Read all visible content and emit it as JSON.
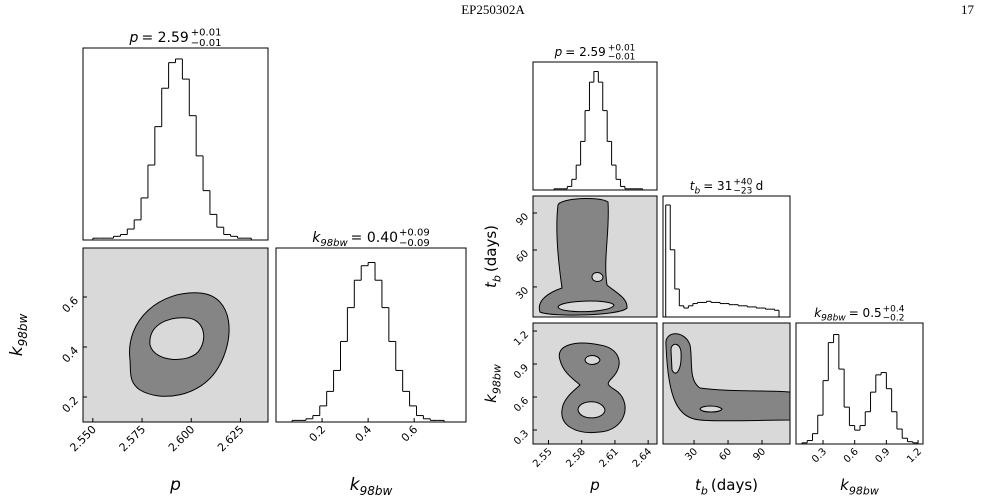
{
  "header": {
    "running_title": "EP250302A",
    "page_number": "17"
  },
  "figures": [
    {
      "columns": [
        {
          "title": {
            "symbol": "p",
            "value": "= 2.59",
            "upper": "+0.01",
            "lower": "−0.01"
          },
          "xlabel": {
            "symbol": "p"
          },
          "xlim": [
            2.545,
            2.639
          ],
          "xticks": [
            {
              "value": 2.55,
              "label": "2.550"
            },
            2.575,
            {
              "value": 2.6,
              "label": "2.600"
            },
            2.625
          ],
          "hist": {
            "bins": [
              2.55,
              2.5535,
              2.557,
              2.5605,
              2.564,
              2.5675,
              2.571,
              2.5745,
              2.578,
              2.5815,
              2.585,
              2.5885,
              2.592,
              2.5955,
              2.599,
              2.6025,
              2.606,
              2.6095,
              2.613,
              2.6165,
              2.62,
              2.6235,
              2.627,
              2.6305,
              2.634
            ],
            "counts": [
              1,
              1,
              1,
              2,
              3,
              6,
              11,
              23,
              41,
              62,
              83,
              97,
              99,
              88,
              68,
              46,
              27,
              14,
              7,
              3,
              2,
              1,
              1,
              0
            ],
            "ylim": [
              0,
              105
            ]
          }
        },
        {
          "title": {
            "symbol": "k",
            "sub": "98bw",
            "value": "= 0.40",
            "upper": "+0.09",
            "lower": "−0.09"
          },
          "xlabel": {
            "symbol": "k",
            "sub": "98bw"
          },
          "xlim": [
            0,
            0.825
          ],
          "xticks": [
            0.2,
            0.4,
            0.6
          ],
          "hist": {
            "bins": [
              0.04,
              0.07,
              0.1,
              0.13,
              0.16,
              0.19,
              0.22,
              0.25,
              0.28,
              0.31,
              0.34,
              0.37,
              0.4,
              0.43,
              0.46,
              0.49,
              0.52,
              0.55,
              0.58,
              0.61,
              0.64,
              0.67,
              0.7,
              0.73,
              0.76
            ],
            "counts": [
              0,
              1,
              1,
              2,
              4,
              10,
              19,
              32,
              50,
              71,
              88,
              97,
              99,
              88,
              71,
              50,
              32,
              19,
              10,
              4,
              2,
              1,
              1,
              0
            ],
            "ylim": [
              0,
              108
            ]
          }
        }
      ],
      "rows": [
        {
          "ylabel": {
            "symbol": "k",
            "sub": "98bw"
          },
          "ylim": [
            0.1,
            0.796
          ],
          "yticks": [
            0.2,
            0.4,
            0.6
          ]
        }
      ]
    },
    {
      "columns": [
        {
          "title": {
            "symbol": "p",
            "value": "= 2.59",
            "upper": "+0.01",
            "lower": "−0.01"
          },
          "xlabel": {
            "symbol": "p"
          },
          "xlim": [
            2.536,
            2.648
          ],
          "xticks": [
            2.55,
            2.58,
            2.61,
            2.64
          ],
          "hist": {
            "bins": [
              2.555,
              2.559,
              2.563,
              2.567,
              2.571,
              2.575,
              2.579,
              2.583,
              2.587,
              2.591,
              2.595,
              2.599,
              2.603,
              2.607,
              2.611,
              2.615,
              2.619,
              2.623,
              2.627,
              2.631,
              2.635,
              2.639,
              2.643
            ],
            "counts": [
              1,
              1,
              1,
              3,
              9,
              21,
              41,
              67,
              91,
              100,
              91,
              67,
              41,
              21,
              9,
              3,
              1,
              1,
              1,
              1,
              0,
              0
            ],
            "ylim": [
              0,
              108
            ]
          }
        },
        {
          "title": {
            "symbol": "t",
            "sub": "b",
            "value": "= 31",
            "upper": "+40",
            "lower": "−23",
            "unit": "d"
          },
          "xlabel": {
            "symbol": "t",
            "sub": "b",
            "unit": "(days)"
          },
          "xlim": [
            2.6,
            114.7
          ],
          "xticks": [
            30,
            60,
            90
          ],
          "hist": {
            "bins": [
              5,
              9,
              13,
              17,
              21,
              25,
              29,
              33,
              37,
              41,
              45,
              49,
              53,
              57,
              61,
              65,
              69,
              73,
              77,
              81,
              85,
              89,
              93,
              97,
              101,
              105
            ],
            "counts": [
              100,
              60,
              25,
              10,
              8,
              10,
              12,
              13,
              13,
              14,
              13,
              13,
              12,
              12,
              11,
              11,
              10,
              10,
              9,
              9,
              8,
              8,
              7,
              7,
              6
            ],
            "ylim": [
              0,
              108
            ]
          }
        },
        {
          "title": {
            "symbol": "k",
            "sub": "98bw",
            "value": "= 0.5",
            "upper": "+0.4",
            "lower": "−0.2"
          },
          "xlabel": {
            "symbol": "k",
            "sub": "98bw"
          },
          "xlim": [
            0.044,
            1.247
          ],
          "xticks": [
            0.3,
            0.6,
            0.9,
            1.2
          ],
          "hist": {
            "bins": [
              0.1,
              0.15,
              0.2,
              0.25,
              0.3,
              0.35,
              0.4,
              0.45,
              0.5,
              0.55,
              0.6,
              0.65,
              0.7,
              0.75,
              0.8,
              0.85,
              0.9,
              0.95,
              1.0,
              1.05,
              1.1,
              1.15,
              1.2
            ],
            "counts": [
              1,
              3,
              9,
              25,
              55,
              88,
              95,
              65,
              32,
              16,
              12,
              16,
              28,
              45,
              60,
              62,
              48,
              28,
              13,
              5,
              2,
              1
            ],
            "ylim": [
              0,
              105
            ]
          }
        }
      ],
      "rows": [
        {
          "ylabel": {
            "symbol": "t",
            "sub": "b",
            "unit": "(days)"
          },
          "ylim": [
            5.6,
            103.8
          ],
          "yticks": [
            30,
            60,
            90
          ]
        },
        {
          "ylabel": {
            "symbol": "k",
            "sub": "98bw"
          },
          "ylim": [
            0.173,
            1.273
          ],
          "yticks": [
            0.3,
            0.6,
            0.9,
            1.2
          ]
        }
      ]
    }
  ]
}
